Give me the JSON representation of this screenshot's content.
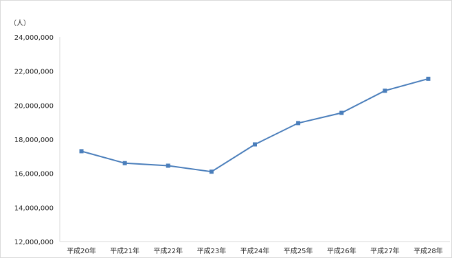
{
  "chart_data": {
    "type": "line",
    "title": "",
    "xlabel": "",
    "ylabel": "（人）",
    "categories": [
      "平成20年",
      "平成21年",
      "平成22年",
      "平成23年",
      "平成24年",
      "平成25年",
      "平成26年",
      "平成27年",
      "平成28年"
    ],
    "series": [
      {
        "values": [
          17300000,
          16600000,
          16450000,
          16100000,
          17700000,
          18950000,
          19550000,
          20850000,
          21550000
        ],
        "color": "#4a7ebb"
      }
    ],
    "ylim": [
      12000000,
      24000000
    ],
    "yticks": [
      12000000,
      14000000,
      16000000,
      18000000,
      20000000,
      22000000,
      24000000
    ],
    "ytick_labels": [
      "12,000,000",
      "14,000,000",
      "16,000,000",
      "18,000,000",
      "20,000,000",
      "22,000,000",
      "24,000,000"
    ],
    "grid": false,
    "legend": "none"
  }
}
